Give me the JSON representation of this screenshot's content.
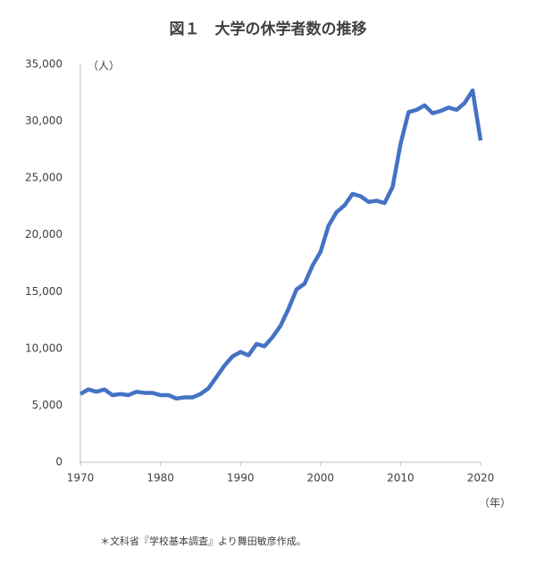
{
  "chart_data": {
    "type": "line",
    "title": "図１　大学の休学者数の推移",
    "y_unit": "（人）",
    "x_unit": "（年）",
    "note": "＊文科省『学校基本調査』より舞田敏彦作成。",
    "x": [
      1970,
      1971,
      1972,
      1973,
      1974,
      1975,
      1976,
      1977,
      1978,
      1979,
      1980,
      1981,
      1982,
      1983,
      1984,
      1985,
      1986,
      1987,
      1988,
      1989,
      1990,
      1991,
      1992,
      1993,
      1994,
      1995,
      1996,
      1997,
      1998,
      1999,
      2000,
      2001,
      2002,
      2003,
      2004,
      2005,
      2006,
      2007,
      2008,
      2009,
      2010,
      2011,
      2012,
      2013,
      2014,
      2015,
      2016,
      2017,
      2018,
      2019,
      2020
    ],
    "series": [
      {
        "name": "休学者数",
        "color": "#4472c4",
        "values": [
          6000,
          6400,
          6200,
          6400,
          5900,
          6000,
          5900,
          6200,
          6100,
          6100,
          5900,
          5900,
          5600,
          5700,
          5700,
          6000,
          6500,
          7500,
          8500,
          9300,
          9700,
          9400,
          10400,
          10200,
          11000,
          12000,
          13500,
          15200,
          15700,
          17300,
          18500,
          20800,
          22000,
          22600,
          23600,
          23400,
          22900,
          23000,
          22800,
          24200,
          28000,
          30800,
          31000,
          31400,
          30700,
          30900,
          31200,
          31000,
          31600,
          32700,
          28300
        ]
      }
    ],
    "xlim": [
      1970,
      2020
    ],
    "xticks": [
      1970,
      1980,
      1990,
      2000,
      2010,
      2020
    ],
    "ylim": [
      0,
      35000
    ],
    "yticks": [
      0,
      {
        "value": 5000,
        "label": "5,000"
      },
      {
        "value": 10000,
        "label": "10,000"
      },
      {
        "value": 15000,
        "label": "15,000"
      },
      {
        "value": 20000,
        "label": "20,000"
      },
      {
        "value": 25000,
        "label": "25,000"
      },
      {
        "value": 30000,
        "label": "30,000"
      },
      {
        "value": 35000,
        "label": "35,000"
      }
    ],
    "grid": false
  }
}
